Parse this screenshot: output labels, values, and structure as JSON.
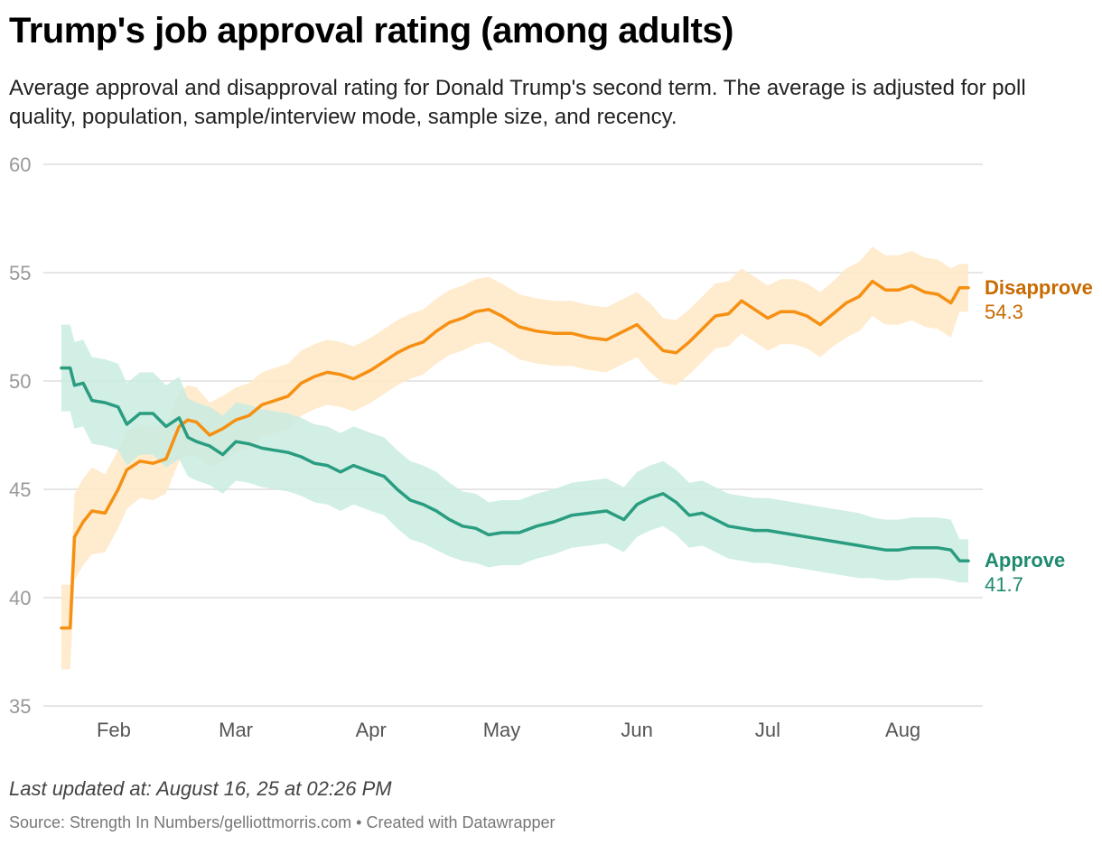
{
  "header": {
    "title": "Trump's job approval rating (among adults)",
    "subtitle": "Average approval and disapproval rating for Donald Trump's second term. The average is adjusted for poll quality, population, sample/interview mode, sample size, and recency."
  },
  "footer": {
    "updated": "Last updated at: August 16, 25 at 02:26 PM",
    "source": "Source: Strength In Numbers/gelliottmorris.com • Created with Datawrapper"
  },
  "colors": {
    "approve": "#2a9d80",
    "approve_band": "#c9ece1",
    "disapprove": "#f59012",
    "disapprove_band": "#ffe7c5",
    "approve_label": "#1f8a70",
    "disapprove_label": "#c76a00",
    "grid": "#dddddd",
    "tick": "#999999"
  },
  "chart_data": {
    "type": "line",
    "title": "Trump's job approval rating (among adults)",
    "xlabel": "",
    "ylabel": "",
    "ylim": [
      35,
      60
    ],
    "yticks": [
      35,
      40,
      45,
      50,
      55,
      60
    ],
    "xlim": [
      "2025-01-20",
      "2025-08-16"
    ],
    "xticks": [
      {
        "date": "2025-02-01",
        "label": "Feb"
      },
      {
        "date": "2025-03-01",
        "label": "Mar"
      },
      {
        "date": "2025-04-01",
        "label": "Apr"
      },
      {
        "date": "2025-05-01",
        "label": "May"
      },
      {
        "date": "2025-06-01",
        "label": "Jun"
      },
      {
        "date": "2025-07-01",
        "label": "Jul"
      },
      {
        "date": "2025-08-01",
        "label": "Aug"
      }
    ],
    "grid": true,
    "legend": "direct labels at right end of lines",
    "series": [
      {
        "name": "Disapprove",
        "end_label": "54.3",
        "x": [
          "2025-01-20",
          "2025-01-22",
          "2025-01-23",
          "2025-01-25",
          "2025-01-27",
          "2025-01-30",
          "2025-02-02",
          "2025-02-04",
          "2025-02-07",
          "2025-02-10",
          "2025-02-13",
          "2025-02-16",
          "2025-02-18",
          "2025-02-20",
          "2025-02-23",
          "2025-02-26",
          "2025-03-01",
          "2025-03-04",
          "2025-03-07",
          "2025-03-10",
          "2025-03-13",
          "2025-03-16",
          "2025-03-19",
          "2025-03-22",
          "2025-03-25",
          "2025-03-28",
          "2025-04-01",
          "2025-04-04",
          "2025-04-07",
          "2025-04-10",
          "2025-04-13",
          "2025-04-16",
          "2025-04-19",
          "2025-04-22",
          "2025-04-25",
          "2025-04-28",
          "2025-05-01",
          "2025-05-05",
          "2025-05-09",
          "2025-05-13",
          "2025-05-17",
          "2025-05-21",
          "2025-05-25",
          "2025-05-29",
          "2025-06-01",
          "2025-06-04",
          "2025-06-07",
          "2025-06-10",
          "2025-06-13",
          "2025-06-16",
          "2025-06-19",
          "2025-06-22",
          "2025-06-25",
          "2025-06-28",
          "2025-07-01",
          "2025-07-04",
          "2025-07-07",
          "2025-07-10",
          "2025-07-13",
          "2025-07-16",
          "2025-07-19",
          "2025-07-22",
          "2025-07-25",
          "2025-07-28",
          "2025-07-31",
          "2025-08-03",
          "2025-08-06",
          "2025-08-09",
          "2025-08-12",
          "2025-08-14",
          "2025-08-16"
        ],
        "values": [
          38.6,
          38.6,
          42.8,
          43.5,
          44.0,
          43.9,
          45.0,
          45.9,
          46.3,
          46.2,
          46.4,
          47.9,
          48.2,
          48.1,
          47.5,
          47.8,
          48.2,
          48.4,
          48.9,
          49.1,
          49.3,
          49.9,
          50.2,
          50.4,
          50.3,
          50.1,
          50.5,
          50.9,
          51.3,
          51.6,
          51.8,
          52.3,
          52.7,
          52.9,
          53.2,
          53.3,
          53.0,
          52.5,
          52.3,
          52.2,
          52.2,
          52.0,
          51.9,
          52.3,
          52.6,
          52.0,
          51.4,
          51.3,
          51.8,
          52.4,
          53.0,
          53.1,
          53.7,
          53.3,
          52.9,
          53.2,
          53.2,
          53.0,
          52.6,
          53.1,
          53.6,
          53.9,
          54.6,
          54.2,
          54.2,
          54.4,
          54.1,
          54.0,
          53.6,
          54.3,
          54.3
        ],
        "lower": [
          36.7,
          36.7,
          40.8,
          41.5,
          42.0,
          42.1,
          43.2,
          44.1,
          44.6,
          44.5,
          44.8,
          46.3,
          46.6,
          46.5,
          46.0,
          46.3,
          46.7,
          46.9,
          47.4,
          47.6,
          47.8,
          48.4,
          48.7,
          48.9,
          48.8,
          48.6,
          49.0,
          49.4,
          49.8,
          50.1,
          50.3,
          50.8,
          51.2,
          51.4,
          51.7,
          51.8,
          51.5,
          51.0,
          50.8,
          50.7,
          50.7,
          50.5,
          50.4,
          50.8,
          51.1,
          50.4,
          49.9,
          49.8,
          50.3,
          50.9,
          51.5,
          51.6,
          52.2,
          51.8,
          51.4,
          51.7,
          51.7,
          51.5,
          51.1,
          51.6,
          52.0,
          52.3,
          53.0,
          52.6,
          52.6,
          52.8,
          52.5,
          52.4,
          52.0,
          53.2,
          53.2
        ],
        "upper": [
          40.6,
          40.6,
          44.8,
          45.5,
          46.0,
          45.7,
          46.8,
          47.7,
          48.0,
          47.9,
          48.0,
          49.5,
          49.8,
          49.7,
          49.0,
          49.3,
          49.7,
          49.9,
          50.4,
          50.6,
          50.8,
          51.4,
          51.7,
          51.9,
          51.8,
          51.6,
          52.0,
          52.4,
          52.8,
          53.1,
          53.3,
          53.8,
          54.2,
          54.4,
          54.7,
          54.8,
          54.5,
          54.0,
          53.8,
          53.7,
          53.7,
          53.5,
          53.4,
          53.8,
          54.1,
          53.6,
          52.9,
          52.8,
          53.3,
          53.9,
          54.5,
          54.6,
          55.2,
          54.8,
          54.4,
          54.7,
          54.7,
          54.5,
          54.1,
          54.6,
          55.2,
          55.5,
          56.2,
          55.8,
          55.8,
          56.0,
          55.7,
          55.6,
          55.2,
          55.4,
          55.4
        ]
      },
      {
        "name": "Approve",
        "end_label": "41.7",
        "x": [
          "2025-01-20",
          "2025-01-22",
          "2025-01-23",
          "2025-01-25",
          "2025-01-27",
          "2025-01-30",
          "2025-02-02",
          "2025-02-04",
          "2025-02-07",
          "2025-02-10",
          "2025-02-13",
          "2025-02-16",
          "2025-02-18",
          "2025-02-20",
          "2025-02-23",
          "2025-02-26",
          "2025-03-01",
          "2025-03-04",
          "2025-03-07",
          "2025-03-10",
          "2025-03-13",
          "2025-03-16",
          "2025-03-19",
          "2025-03-22",
          "2025-03-25",
          "2025-03-28",
          "2025-04-01",
          "2025-04-04",
          "2025-04-07",
          "2025-04-10",
          "2025-04-13",
          "2025-04-16",
          "2025-04-19",
          "2025-04-22",
          "2025-04-25",
          "2025-04-28",
          "2025-05-01",
          "2025-05-05",
          "2025-05-09",
          "2025-05-13",
          "2025-05-17",
          "2025-05-21",
          "2025-05-25",
          "2025-05-29",
          "2025-06-01",
          "2025-06-04",
          "2025-06-07",
          "2025-06-10",
          "2025-06-13",
          "2025-06-16",
          "2025-06-19",
          "2025-06-22",
          "2025-06-25",
          "2025-06-28",
          "2025-07-01",
          "2025-07-04",
          "2025-07-07",
          "2025-07-10",
          "2025-07-13",
          "2025-07-16",
          "2025-07-19",
          "2025-07-22",
          "2025-07-25",
          "2025-07-28",
          "2025-07-31",
          "2025-08-03",
          "2025-08-06",
          "2025-08-09",
          "2025-08-12",
          "2025-08-14",
          "2025-08-16"
        ],
        "values": [
          50.6,
          50.6,
          49.8,
          49.9,
          49.1,
          49.0,
          48.8,
          48.0,
          48.5,
          48.5,
          47.9,
          48.3,
          47.4,
          47.2,
          47.0,
          46.6,
          47.2,
          47.1,
          46.9,
          46.8,
          46.7,
          46.5,
          46.2,
          46.1,
          45.8,
          46.1,
          45.8,
          45.6,
          45.0,
          44.5,
          44.3,
          44.0,
          43.6,
          43.3,
          43.2,
          42.9,
          43.0,
          43.0,
          43.3,
          43.5,
          43.8,
          43.9,
          44.0,
          43.6,
          44.3,
          44.6,
          44.8,
          44.4,
          43.8,
          43.9,
          43.6,
          43.3,
          43.2,
          43.1,
          43.1,
          43.0,
          42.9,
          42.8,
          42.7,
          42.6,
          42.5,
          42.4,
          42.3,
          42.2,
          42.2,
          42.3,
          42.3,
          42.3,
          42.2,
          41.7,
          41.7
        ],
        "lower": [
          48.6,
          48.6,
          47.8,
          47.9,
          47.1,
          47.0,
          46.8,
          46.1,
          46.6,
          46.6,
          46.0,
          46.4,
          45.6,
          45.4,
          45.2,
          44.8,
          45.4,
          45.3,
          45.1,
          45.0,
          44.9,
          44.7,
          44.4,
          44.3,
          44.0,
          44.3,
          44.0,
          43.8,
          43.2,
          42.7,
          42.5,
          42.2,
          41.9,
          41.7,
          41.6,
          41.4,
          41.5,
          41.5,
          41.8,
          42.0,
          42.3,
          42.4,
          42.5,
          42.1,
          42.8,
          43.1,
          43.3,
          42.9,
          42.3,
          42.4,
          42.1,
          41.8,
          41.7,
          41.6,
          41.6,
          41.5,
          41.4,
          41.3,
          41.2,
          41.1,
          41.0,
          40.9,
          40.9,
          40.8,
          40.8,
          40.9,
          40.9,
          40.9,
          40.8,
          40.7,
          40.7
        ],
        "upper": [
          52.6,
          52.6,
          51.8,
          51.9,
          51.1,
          51.0,
          50.8,
          49.9,
          50.4,
          50.4,
          49.8,
          50.2,
          49.2,
          49.0,
          48.8,
          48.4,
          49.0,
          48.9,
          48.7,
          48.6,
          48.5,
          48.3,
          48.0,
          47.9,
          47.6,
          47.9,
          47.6,
          47.4,
          46.8,
          46.3,
          46.1,
          45.8,
          45.3,
          44.9,
          44.8,
          44.4,
          44.5,
          44.5,
          44.8,
          45.0,
          45.3,
          45.4,
          45.5,
          45.1,
          45.8,
          46.1,
          46.3,
          45.9,
          45.3,
          45.4,
          45.1,
          44.8,
          44.7,
          44.6,
          44.6,
          44.5,
          44.4,
          44.3,
          44.2,
          44.1,
          44.0,
          43.9,
          43.7,
          43.6,
          43.6,
          43.7,
          43.7,
          43.7,
          43.6,
          42.7,
          42.7
        ]
      }
    ]
  }
}
